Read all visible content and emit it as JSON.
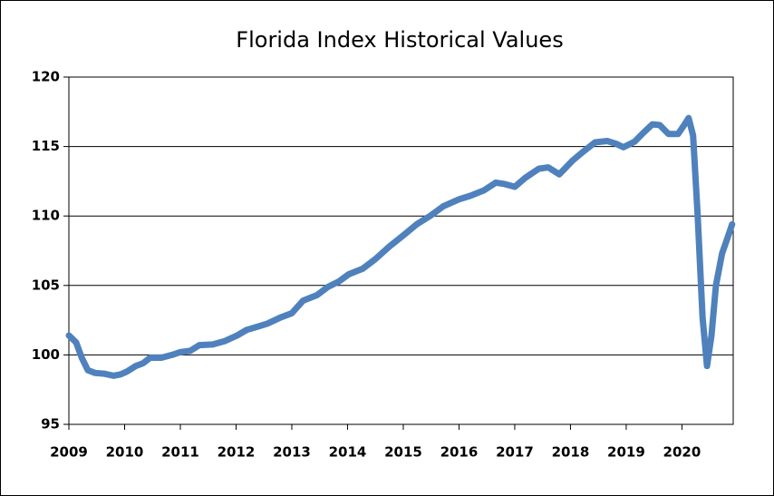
{
  "chart_data": {
    "type": "line",
    "title": "Florida Index Historical Values",
    "x": [
      2009.0,
      2009.13,
      2009.23,
      2009.34,
      2009.47,
      2009.63,
      2009.8,
      2009.93,
      2010.04,
      2010.2,
      2010.33,
      2010.46,
      2010.66,
      2010.85,
      2011.0,
      2011.18,
      2011.34,
      2011.58,
      2011.8,
      2012.02,
      2012.19,
      2012.4,
      2012.56,
      2012.8,
      2013.0,
      2013.2,
      2013.45,
      2013.65,
      2013.85,
      2014.02,
      2014.27,
      2014.5,
      2014.75,
      2015.0,
      2015.24,
      2015.48,
      2015.72,
      2016.0,
      2016.2,
      2016.45,
      2016.66,
      2016.82,
      2017.0,
      2017.19,
      2017.43,
      2017.6,
      2017.8,
      2018.04,
      2018.25,
      2018.44,
      2018.66,
      2018.82,
      2018.95,
      2019.15,
      2019.31,
      2019.47,
      2019.6,
      2019.76,
      2019.93,
      2020.04,
      2020.12,
      2020.2,
      2020.28,
      2020.37,
      2020.45,
      2020.53,
      2020.61,
      2020.72,
      2020.82,
      2020.9
    ],
    "series": [
      {
        "name": "Florida Index",
        "color": "#4f81bd",
        "values": [
          101.4,
          100.9,
          99.8,
          98.9,
          98.7,
          98.65,
          98.5,
          98.6,
          98.8,
          99.2,
          99.4,
          99.8,
          99.8,
          100.0,
          100.2,
          100.3,
          100.7,
          100.75,
          101.0,
          101.4,
          101.8,
          102.05,
          102.25,
          102.7,
          103.0,
          103.9,
          104.3,
          104.9,
          105.3,
          105.8,
          106.2,
          106.9,
          107.8,
          108.6,
          109.4,
          110.0,
          110.7,
          111.2,
          111.45,
          111.85,
          112.4,
          112.3,
          112.1,
          112.75,
          113.4,
          113.5,
          113.0,
          114.0,
          114.7,
          115.3,
          115.4,
          115.2,
          114.95,
          115.35,
          116.0,
          116.6,
          116.55,
          115.9,
          115.9,
          116.55,
          117.05,
          115.8,
          110.2,
          102.7,
          99.2,
          101.4,
          105.0,
          107.3,
          108.45,
          109.4
        ]
      }
    ],
    "xlim": [
      2009,
      2020.92
    ],
    "xticks": [
      2009,
      2010,
      2011,
      2012,
      2013,
      2014,
      2015,
      2016,
      2017,
      2018,
      2019,
      2020
    ],
    "ylim": [
      95,
      120
    ],
    "yticks": [
      95,
      100,
      105,
      110,
      115,
      120
    ],
    "grid": true
  }
}
